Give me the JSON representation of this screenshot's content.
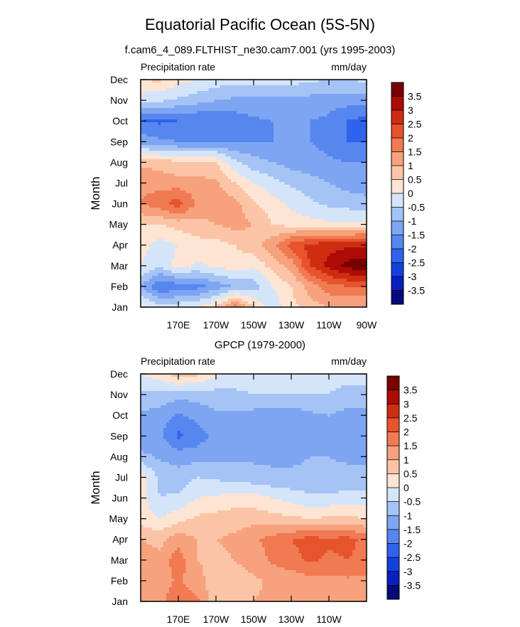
{
  "figure": {
    "title": "Equatorial Pacific Ocean (5S-5N)"
  },
  "colors": {
    "levels": [
      -3.5,
      -3,
      -2.5,
      -2,
      -1.5,
      -1,
      -0.5,
      0,
      0.5,
      1,
      1.5,
      2,
      2.5,
      3,
      3.5
    ],
    "palette": [
      "#08097a",
      "#0a1fbf",
      "#1540e0",
      "#2f63ec",
      "#5687ef",
      "#7ea5f2",
      "#a6c3f6",
      "#d4e5fa",
      "#fde4d3",
      "#fcc4a6",
      "#f7a17d",
      "#f07a52",
      "#e6532d",
      "#cf2d12",
      "#ad0c06",
      "#7a0000"
    ]
  },
  "chart_data": [
    {
      "type": "heatmap",
      "subtitle": "f.cam6_4_089.FLTHIST_ne30.cam7.001 (yrs 1995-2003)",
      "left_label": "Precipitation rate",
      "right_label": "mm/day",
      "xlabel": "",
      "ylabel": "Month",
      "xlim": [
        150,
        270
      ],
      "x_ticks": [
        170,
        190,
        210,
        230,
        250,
        270
      ],
      "x_tick_labels": [
        "170E",
        "170W",
        "150W",
        "130W",
        "110W",
        "90W"
      ],
      "y_tick_labels": [
        "Jan",
        "Feb",
        "Mar",
        "Apr",
        "May",
        "Jun",
        "Jul",
        "Aug",
        "Sep",
        "Oct",
        "Nov",
        "Dec"
      ],
      "x": [
        150,
        160,
        170,
        180,
        190,
        200,
        210,
        220,
        230,
        240,
        250,
        260,
        270
      ],
      "colorbar_labels": [
        "3.5",
        "3",
        "2.5",
        "2",
        "1.5",
        "1",
        "0.5",
        "0",
        "-0.5",
        "-1",
        "-1.5",
        "-2",
        "-2.5",
        "-3",
        "-3.5"
      ],
      "values": [
        [
          0.3,
          -0.3,
          -0.2,
          0.0,
          0.5,
          1.8,
          0.5,
          -0.3,
          0.3,
          0.8,
          1.0,
          1.0,
          1.0
        ],
        [
          -1.0,
          -2.0,
          -1.8,
          -1.7,
          -1.3,
          -1.0,
          -0.8,
          0.0,
          0.5,
          1.2,
          1.8,
          2.0,
          2.0
        ],
        [
          0.0,
          -0.4,
          0.2,
          -0.1,
          0.1,
          0.3,
          0.1,
          0.7,
          1.2,
          2.5,
          3.2,
          3.7,
          3.9
        ],
        [
          0.2,
          -0.2,
          0.0,
          0.3,
          0.3,
          0.5,
          0.8,
          1.3,
          2.2,
          2.7,
          2.8,
          2.9,
          2.9
        ],
        [
          0.5,
          0.5,
          0.7,
          0.8,
          1.0,
          1.2,
          1.0,
          0.5,
          0.3,
          0.2,
          0.1,
          0.1,
          0.2
        ],
        [
          1.5,
          1.8,
          2.3,
          1.4,
          1.3,
          1.2,
          0.6,
          0.2,
          -0.1,
          -0.4,
          -0.6,
          -0.7,
          -0.8
        ],
        [
          1.4,
          1.3,
          1.2,
          1.2,
          1.1,
          0.5,
          0.0,
          -0.3,
          -0.6,
          -0.8,
          -1.0,
          -1.2,
          -1.3
        ],
        [
          0.9,
          0.8,
          0.6,
          0.6,
          0.5,
          -0.4,
          -0.8,
          -1.0,
          -1.2,
          -1.3,
          -1.4,
          -1.5,
          -1.5
        ],
        [
          -1.2,
          -1.4,
          -1.5,
          -1.5,
          -1.5,
          -1.5,
          -1.5,
          -1.5,
          -1.5,
          -1.5,
          -1.7,
          -2.0,
          -2.0
        ],
        [
          -2.0,
          -2.1,
          -2.0,
          -2.0,
          -2.0,
          -1.8,
          -1.6,
          -1.5,
          -1.5,
          -1.5,
          -1.6,
          -2.0,
          -2.2
        ],
        [
          -0.3,
          -0.4,
          -0.6,
          -0.8,
          -1.0,
          -1.1,
          -1.1,
          -1.1,
          -1.1,
          -1.2,
          -1.3,
          -1.3,
          -1.3
        ],
        [
          0.5,
          0.6,
          0.2,
          0.0,
          -0.2,
          -0.3,
          -0.3,
          -0.3,
          -0.3,
          -0.4,
          -0.5,
          -0.5,
          -0.4
        ]
      ]
    },
    {
      "type": "heatmap",
      "subtitle": "GPCP (1979-2000)",
      "left_label": "Precipitation rate",
      "right_label": "mm/day",
      "xlabel": "",
      "ylabel": "Month",
      "xlim": [
        150,
        270
      ],
      "x_ticks": [
        170,
        190,
        210,
        230,
        250
      ],
      "x_tick_labels": [
        "170E",
        "170W",
        "150W",
        "130W",
        "110W"
      ],
      "y_tick_labels": [
        "Jan",
        "Feb",
        "Mar",
        "Apr",
        "May",
        "Jun",
        "Jul",
        "Aug",
        "Sep",
        "Oct",
        "Nov",
        "Dec"
      ],
      "x": [
        150,
        160,
        170,
        180,
        190,
        200,
        210,
        220,
        230,
        240,
        250,
        260,
        270
      ],
      "colorbar_labels": [
        "3.5",
        "3",
        "2.5",
        "2",
        "1.5",
        "1",
        "0.5",
        "0",
        "-0.5",
        "-1",
        "-1.5",
        "-2",
        "-2.5",
        "-3",
        "-3.5"
      ],
      "values": [
        [
          1.3,
          1.4,
          1.8,
          1.6,
          0.6,
          0.8,
          1.0,
          1.1,
          1.2,
          1.2,
          1.2,
          1.2,
          1.2
        ],
        [
          1.5,
          1.2,
          1.6,
          1.2,
          0.7,
          0.8,
          0.9,
          1.1,
          1.2,
          1.3,
          1.4,
          1.4,
          1.4
        ],
        [
          1.4,
          1.2,
          1.8,
          1.0,
          0.9,
          1.0,
          1.2,
          1.6,
          1.8,
          2.1,
          1.9,
          2.0,
          1.8
        ],
        [
          1.0,
          0.8,
          1.3,
          1.0,
          1.0,
          1.1,
          1.4,
          1.7,
          2.0,
          2.2,
          2.1,
          2.2,
          1.8
        ],
        [
          0.3,
          0.0,
          0.3,
          0.6,
          0.7,
          0.8,
          0.8,
          0.7,
          0.6,
          0.5,
          0.6,
          0.6,
          0.5
        ],
        [
          0.2,
          -0.5,
          -0.4,
          0.0,
          0.1,
          0.2,
          0.2,
          0.0,
          -0.2,
          -0.4,
          -0.4,
          -0.3,
          -0.3
        ],
        [
          0.3,
          -0.6,
          -0.8,
          -0.5,
          -0.6,
          -0.7,
          -0.8,
          -0.9,
          -0.9,
          -0.9,
          -0.9,
          -0.8,
          -0.8
        ],
        [
          -0.8,
          -1.1,
          -1.2,
          -1.2,
          -1.1,
          -1.1,
          -1.1,
          -1.1,
          -1.1,
          -1.0,
          -1.0,
          -1.1,
          -1.1
        ],
        [
          -1.5,
          -1.4,
          -2.1,
          -1.8,
          -1.3,
          -1.1,
          -1.3,
          -1.4,
          -1.4,
          -1.1,
          -1.0,
          -1.3,
          -1.4
        ],
        [
          -1.1,
          -1.2,
          -1.6,
          -1.3,
          -1.1,
          -1.1,
          -1.2,
          -1.3,
          -1.3,
          -1.1,
          -1.0,
          -1.2,
          -1.2
        ],
        [
          -0.6,
          -0.7,
          -0.8,
          -0.8,
          -0.7,
          -0.6,
          -0.5,
          -0.5,
          -0.5,
          -0.5,
          -0.5,
          -0.6,
          -0.6
        ],
        [
          0.0,
          0.3,
          0.8,
          0.6,
          0.1,
          -0.2,
          -0.2,
          -0.2,
          -0.3,
          -0.4,
          -0.4,
          -0.4,
          -0.4
        ]
      ]
    }
  ]
}
